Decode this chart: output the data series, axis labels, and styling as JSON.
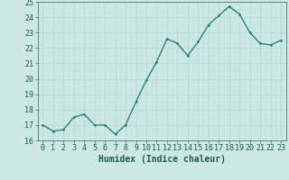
{
  "xlabel": "Humidex (Indice chaleur)",
  "ylabel": "",
  "x": [
    0,
    1,
    2,
    3,
    4,
    5,
    6,
    7,
    8,
    9,
    10,
    11,
    12,
    13,
    14,
    15,
    16,
    17,
    18,
    19,
    20,
    21,
    22,
    23
  ],
  "y": [
    17.0,
    16.6,
    16.7,
    17.5,
    17.7,
    17.0,
    17.0,
    16.4,
    17.0,
    18.5,
    19.9,
    21.1,
    22.6,
    22.3,
    21.5,
    22.4,
    23.5,
    24.1,
    24.7,
    24.2,
    23.0,
    22.3,
    22.2,
    22.5
  ],
  "ylim": [
    16,
    25
  ],
  "yticks": [
    16,
    17,
    18,
    19,
    20,
    21,
    22,
    23,
    24,
    25
  ],
  "xlim": [
    -0.5,
    23.5
  ],
  "xticks": [
    0,
    1,
    2,
    3,
    4,
    5,
    6,
    7,
    8,
    9,
    10,
    11,
    12,
    13,
    14,
    15,
    16,
    17,
    18,
    19,
    20,
    21,
    22,
    23
  ],
  "line_color": "#1a7a6e",
  "marker_color": "#1a7a6e",
  "bg_color": "#cce8e5",
  "grid_major_color": "#b8d8d4",
  "grid_minor_color": "#c4e0dc",
  "tick_label_fontsize": 6.0,
  "xlabel_fontsize": 7.0,
  "marker_size": 2.5,
  "linewidth": 0.9
}
